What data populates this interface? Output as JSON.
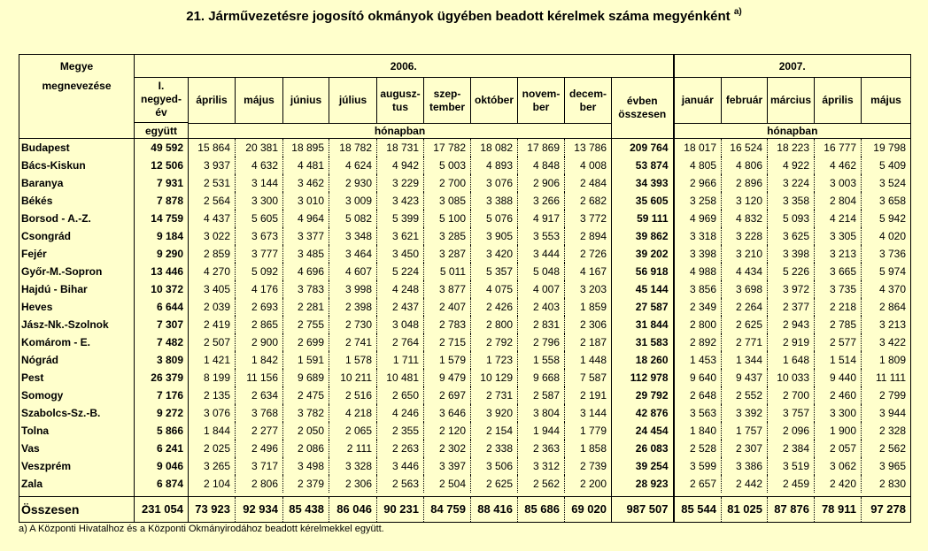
{
  "title": "21. Járművezetésre jogosító okmányok ügyében beadott kérelmek száma megyénként",
  "title_note": "a)",
  "header": {
    "county_line1": "Megye",
    "county_line2": "megnevezése",
    "year_2006": "2006.",
    "year_2007": "2007.",
    "q1_line1": "I.",
    "q1_line2": "negyed-",
    "q1_line3": "év",
    "q1_together": "együtt",
    "months_2006": [
      "április",
      "május",
      "június",
      "július",
      "augusz-tus",
      "szep-tember",
      "október",
      "novem-ber",
      "decem-ber"
    ],
    "total_line1": "évben",
    "total_line2": "összesen",
    "months_2007": [
      "január",
      "február",
      "március",
      "április",
      "május"
    ],
    "monthly": "hónapban",
    "monthly_2007": "hónapban"
  },
  "rows": [
    {
      "county": "Budapest",
      "q1": "49 592",
      "m": [
        "15 864",
        "20 381",
        "18 895",
        "18 782",
        "18 731",
        "17 782",
        "18 082",
        "17 869",
        "13 786"
      ],
      "total": "209 764",
      "m07": [
        "18 017",
        "16 524",
        "18 223",
        "16 777",
        "19 798"
      ]
    },
    {
      "county": "Bács-Kiskun",
      "q1": "12 506",
      "m": [
        "3 937",
        "4 632",
        "4 481",
        "4 624",
        "4 942",
        "5 003",
        "4 893",
        "4 848",
        "4 008"
      ],
      "total": "53 874",
      "m07": [
        "4 805",
        "4 806",
        "4 922",
        "4 462",
        "5 409"
      ]
    },
    {
      "county": "Baranya",
      "q1": "7 931",
      "m": [
        "2 531",
        "3 144",
        "3 462",
        "2 930",
        "3 229",
        "2 700",
        "3 076",
        "2 906",
        "2 484"
      ],
      "total": "34 393",
      "m07": [
        "2 966",
        "2 896",
        "3 224",
        "3 003",
        "3 524"
      ]
    },
    {
      "county": "Békés",
      "q1": "7 878",
      "m": [
        "2 564",
        "3 300",
        "3 010",
        "3 009",
        "3 423",
        "3 085",
        "3 388",
        "3 266",
        "2 682"
      ],
      "total": "35 605",
      "m07": [
        "3 258",
        "3 120",
        "3 358",
        "2 804",
        "3 658"
      ]
    },
    {
      "county": "Borsod - A.-Z.",
      "q1": "14 759",
      "m": [
        "4 437",
        "5 605",
        "4 964",
        "5 082",
        "5 399",
        "5 100",
        "5 076",
        "4 917",
        "3 772"
      ],
      "total": "59 111",
      "m07": [
        "4 969",
        "4 832",
        "5 093",
        "4 214",
        "5 942"
      ]
    },
    {
      "county": "Csongrád",
      "q1": "9 184",
      "m": [
        "3 022",
        "3 673",
        "3 377",
        "3 348",
        "3 621",
        "3 285",
        "3 905",
        "3 553",
        "2 894"
      ],
      "total": "39 862",
      "m07": [
        "3 318",
        "3 228",
        "3 625",
        "3 305",
        "4 020"
      ]
    },
    {
      "county": "Fejér",
      "q1": "9 290",
      "m": [
        "2 859",
        "3 777",
        "3 485",
        "3 464",
        "3 450",
        "3 287",
        "3 420",
        "3 444",
        "2 726"
      ],
      "total": "39 202",
      "m07": [
        "3 398",
        "3 210",
        "3 398",
        "3 213",
        "3 736"
      ]
    },
    {
      "county": "Győr-M.-Sopron",
      "q1": "13 446",
      "m": [
        "4 270",
        "5 092",
        "4 696",
        "4 607",
        "5 224",
        "5 011",
        "5 357",
        "5 048",
        "4 167"
      ],
      "total": "56 918",
      "m07": [
        "4 988",
        "4 434",
        "5 226",
        "3 665",
        "5 974"
      ]
    },
    {
      "county": "Hajdú - Bihar",
      "q1": "10 372",
      "m": [
        "3 405",
        "4 176",
        "3 783",
        "3 998",
        "4 248",
        "3 877",
        "4 075",
        "4 007",
        "3 203"
      ],
      "total": "45 144",
      "m07": [
        "3 856",
        "3 698",
        "3 972",
        "3 735",
        "4 370"
      ]
    },
    {
      "county": "Heves",
      "q1": "6 644",
      "m": [
        "2 039",
        "2 693",
        "2 281",
        "2 398",
        "2 437",
        "2 407",
        "2 426",
        "2 403",
        "1 859"
      ],
      "total": "27 587",
      "m07": [
        "2 349",
        "2 264",
        "2 377",
        "2 218",
        "2 864"
      ]
    },
    {
      "county": "Jász-Nk.-Szolnok",
      "q1": "7 307",
      "m": [
        "2 419",
        "2 865",
        "2 755",
        "2 730",
        "3 048",
        "2 783",
        "2 800",
        "2 831",
        "2 306"
      ],
      "total": "31 844",
      "m07": [
        "2 800",
        "2 625",
        "2 943",
        "2 785",
        "3 213"
      ]
    },
    {
      "county": "Komárom - E.",
      "q1": "7 482",
      "m": [
        "2 507",
        "2 900",
        "2 699",
        "2 741",
        "2 764",
        "2 715",
        "2 792",
        "2 796",
        "2 187"
      ],
      "total": "31 583",
      "m07": [
        "2 892",
        "2 771",
        "2 919",
        "2 577",
        "3 422"
      ]
    },
    {
      "county": "Nógrád",
      "q1": "3 809",
      "m": [
        "1 421",
        "1 842",
        "1 591",
        "1 578",
        "1 711",
        "1 579",
        "1 723",
        "1 558",
        "1 448"
      ],
      "total": "18 260",
      "m07": [
        "1 453",
        "1 344",
        "1 648",
        "1 514",
        "1 809"
      ]
    },
    {
      "county": "Pest",
      "q1": "26 379",
      "m": [
        "8 199",
        "11 156",
        "9 689",
        "10 211",
        "10 481",
        "9 479",
        "10 129",
        "9 668",
        "7 587"
      ],
      "total": "112 978",
      "m07": [
        "9 640",
        "9 437",
        "10 033",
        "9 440",
        "11 111"
      ]
    },
    {
      "county": "Somogy",
      "q1": "7 176",
      "m": [
        "2 135",
        "2 634",
        "2 475",
        "2 516",
        "2 650",
        "2 697",
        "2 731",
        "2 587",
        "2 191"
      ],
      "total": "29 792",
      "m07": [
        "2 648",
        "2 552",
        "2 700",
        "2 460",
        "2 799"
      ]
    },
    {
      "county": "Szabolcs-Sz.-B.",
      "q1": "9 272",
      "m": [
        "3 076",
        "3 768",
        "3 782",
        "4 218",
        "4 246",
        "3 646",
        "3 920",
        "3 804",
        "3 144"
      ],
      "total": "42 876",
      "m07": [
        "3 563",
        "3 392",
        "3 757",
        "3 300",
        "3 944"
      ]
    },
    {
      "county": "Tolna",
      "q1": "5 866",
      "m": [
        "1 844",
        "2 277",
        "2 050",
        "2 065",
        "2 355",
        "2 120",
        "2 154",
        "1 944",
        "1 779"
      ],
      "total": "24 454",
      "m07": [
        "1 840",
        "1 757",
        "2 096",
        "1 900",
        "2 328"
      ]
    },
    {
      "county": "Vas",
      "q1": "6 241",
      "m": [
        "2 025",
        "2 496",
        "2 086",
        "2 111",
        "2 263",
        "2 302",
        "2 338",
        "2 363",
        "1 858"
      ],
      "total": "26 083",
      "m07": [
        "2 528",
        "2 307",
        "2 384",
        "2 057",
        "2 562"
      ]
    },
    {
      "county": "Veszprém",
      "q1": "9 046",
      "m": [
        "3 265",
        "3 717",
        "3 498",
        "3 328",
        "3 446",
        "3 397",
        "3 506",
        "3 312",
        "2 739"
      ],
      "total": "39 254",
      "m07": [
        "3 599",
        "3 386",
        "3 519",
        "3 062",
        "3 965"
      ]
    },
    {
      "county": "Zala",
      "q1": "6 874",
      "m": [
        "2 104",
        "2 806",
        "2 379",
        "2 306",
        "2 563",
        "2 504",
        "2 625",
        "2 562",
        "2 200"
      ],
      "total": "28 923",
      "m07": [
        "2 657",
        "2 442",
        "2 459",
        "2 420",
        "2 830"
      ]
    }
  ],
  "total_row": {
    "county": "Összesen",
    "q1": "231 054",
    "m": [
      "73 923",
      "92 934",
      "85 438",
      "86 046",
      "90 231",
      "84 759",
      "88 416",
      "85 686",
      "69 020"
    ],
    "total": "987 507",
    "m07": [
      "85 544",
      "81 025",
      "87 876",
      "78 911",
      "97 278"
    ]
  },
  "footnote": "a) A Központi Hivatalhoz és a Központi Okmányirodához beadott kérelmekkel együtt."
}
